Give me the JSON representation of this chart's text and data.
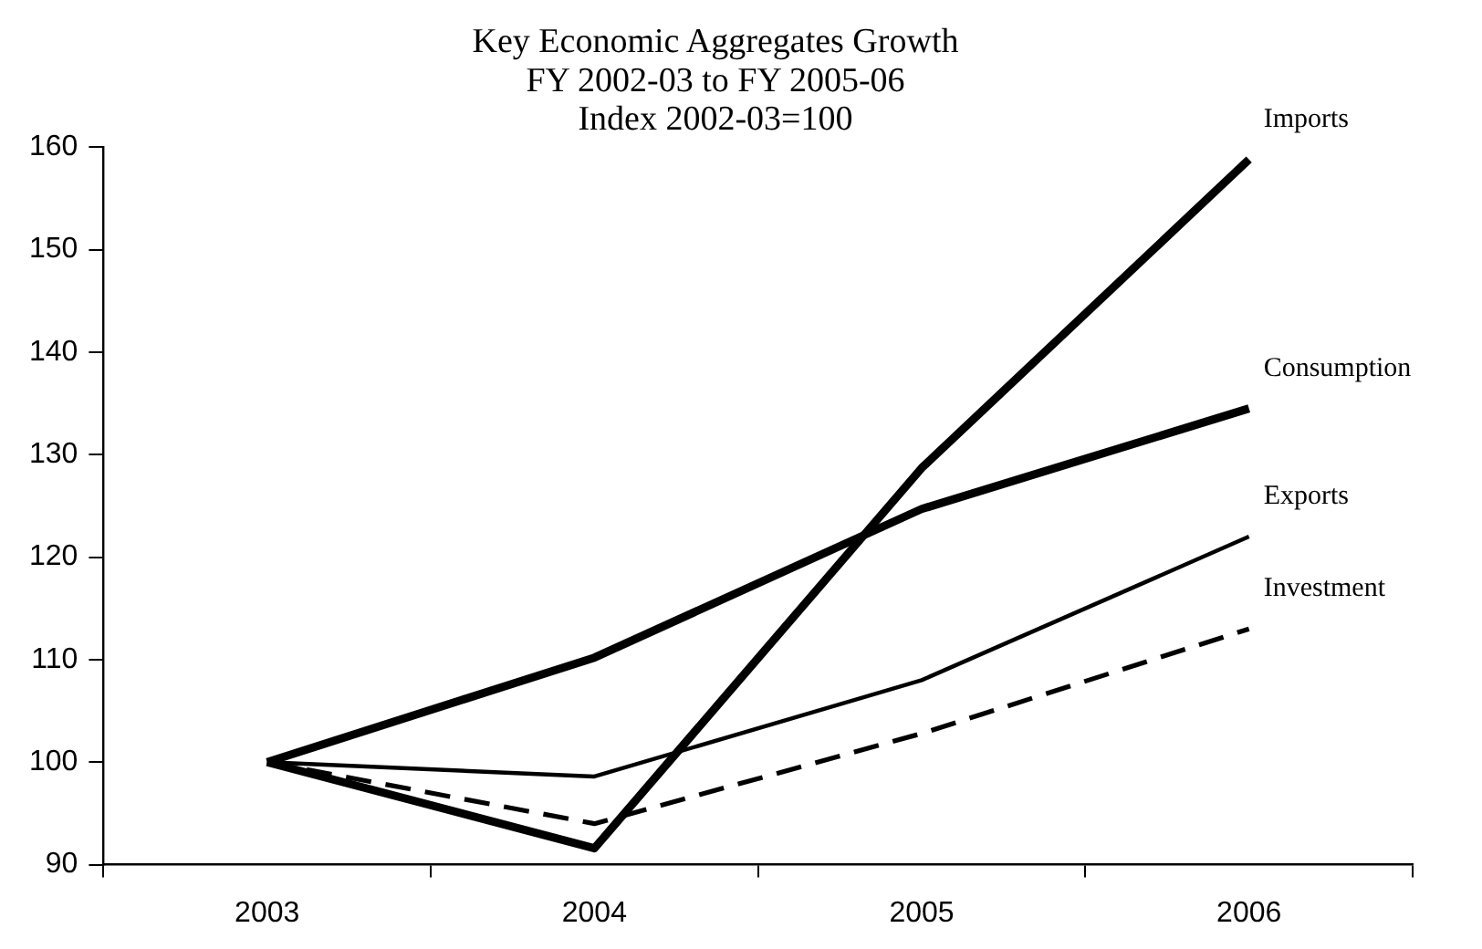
{
  "chart_data": {
    "type": "line",
    "title": "Key Economic Aggregates Growth",
    "subtitle": "FY 2002-03 to FY 2005-06\nIndex 2002-03=100",
    "categories": [
      "2003",
      "2004",
      "2005",
      "2006"
    ],
    "series": [
      {
        "name": "Imports",
        "color": "#000000",
        "values": [
          100,
          91.6,
          128.7,
          158.8
        ]
      },
      {
        "name": "Consumption",
        "color": "#000000",
        "values": [
          100,
          110.2,
          124.7,
          134.5
        ]
      },
      {
        "name": "Exports",
        "color": "#000000",
        "values": [
          100,
          98.6,
          108,
          122
        ]
      },
      {
        "name": "Investment",
        "color": "#000000",
        "values": [
          100,
          94,
          102.8,
          113
        ],
        "line_style": "dashed"
      }
    ],
    "ylim": [
      90,
      160
    ],
    "yticks": [
      90,
      100,
      110,
      120,
      130,
      140,
      150,
      160
    ],
    "grid": false,
    "legend": false,
    "marker": "none"
  }
}
